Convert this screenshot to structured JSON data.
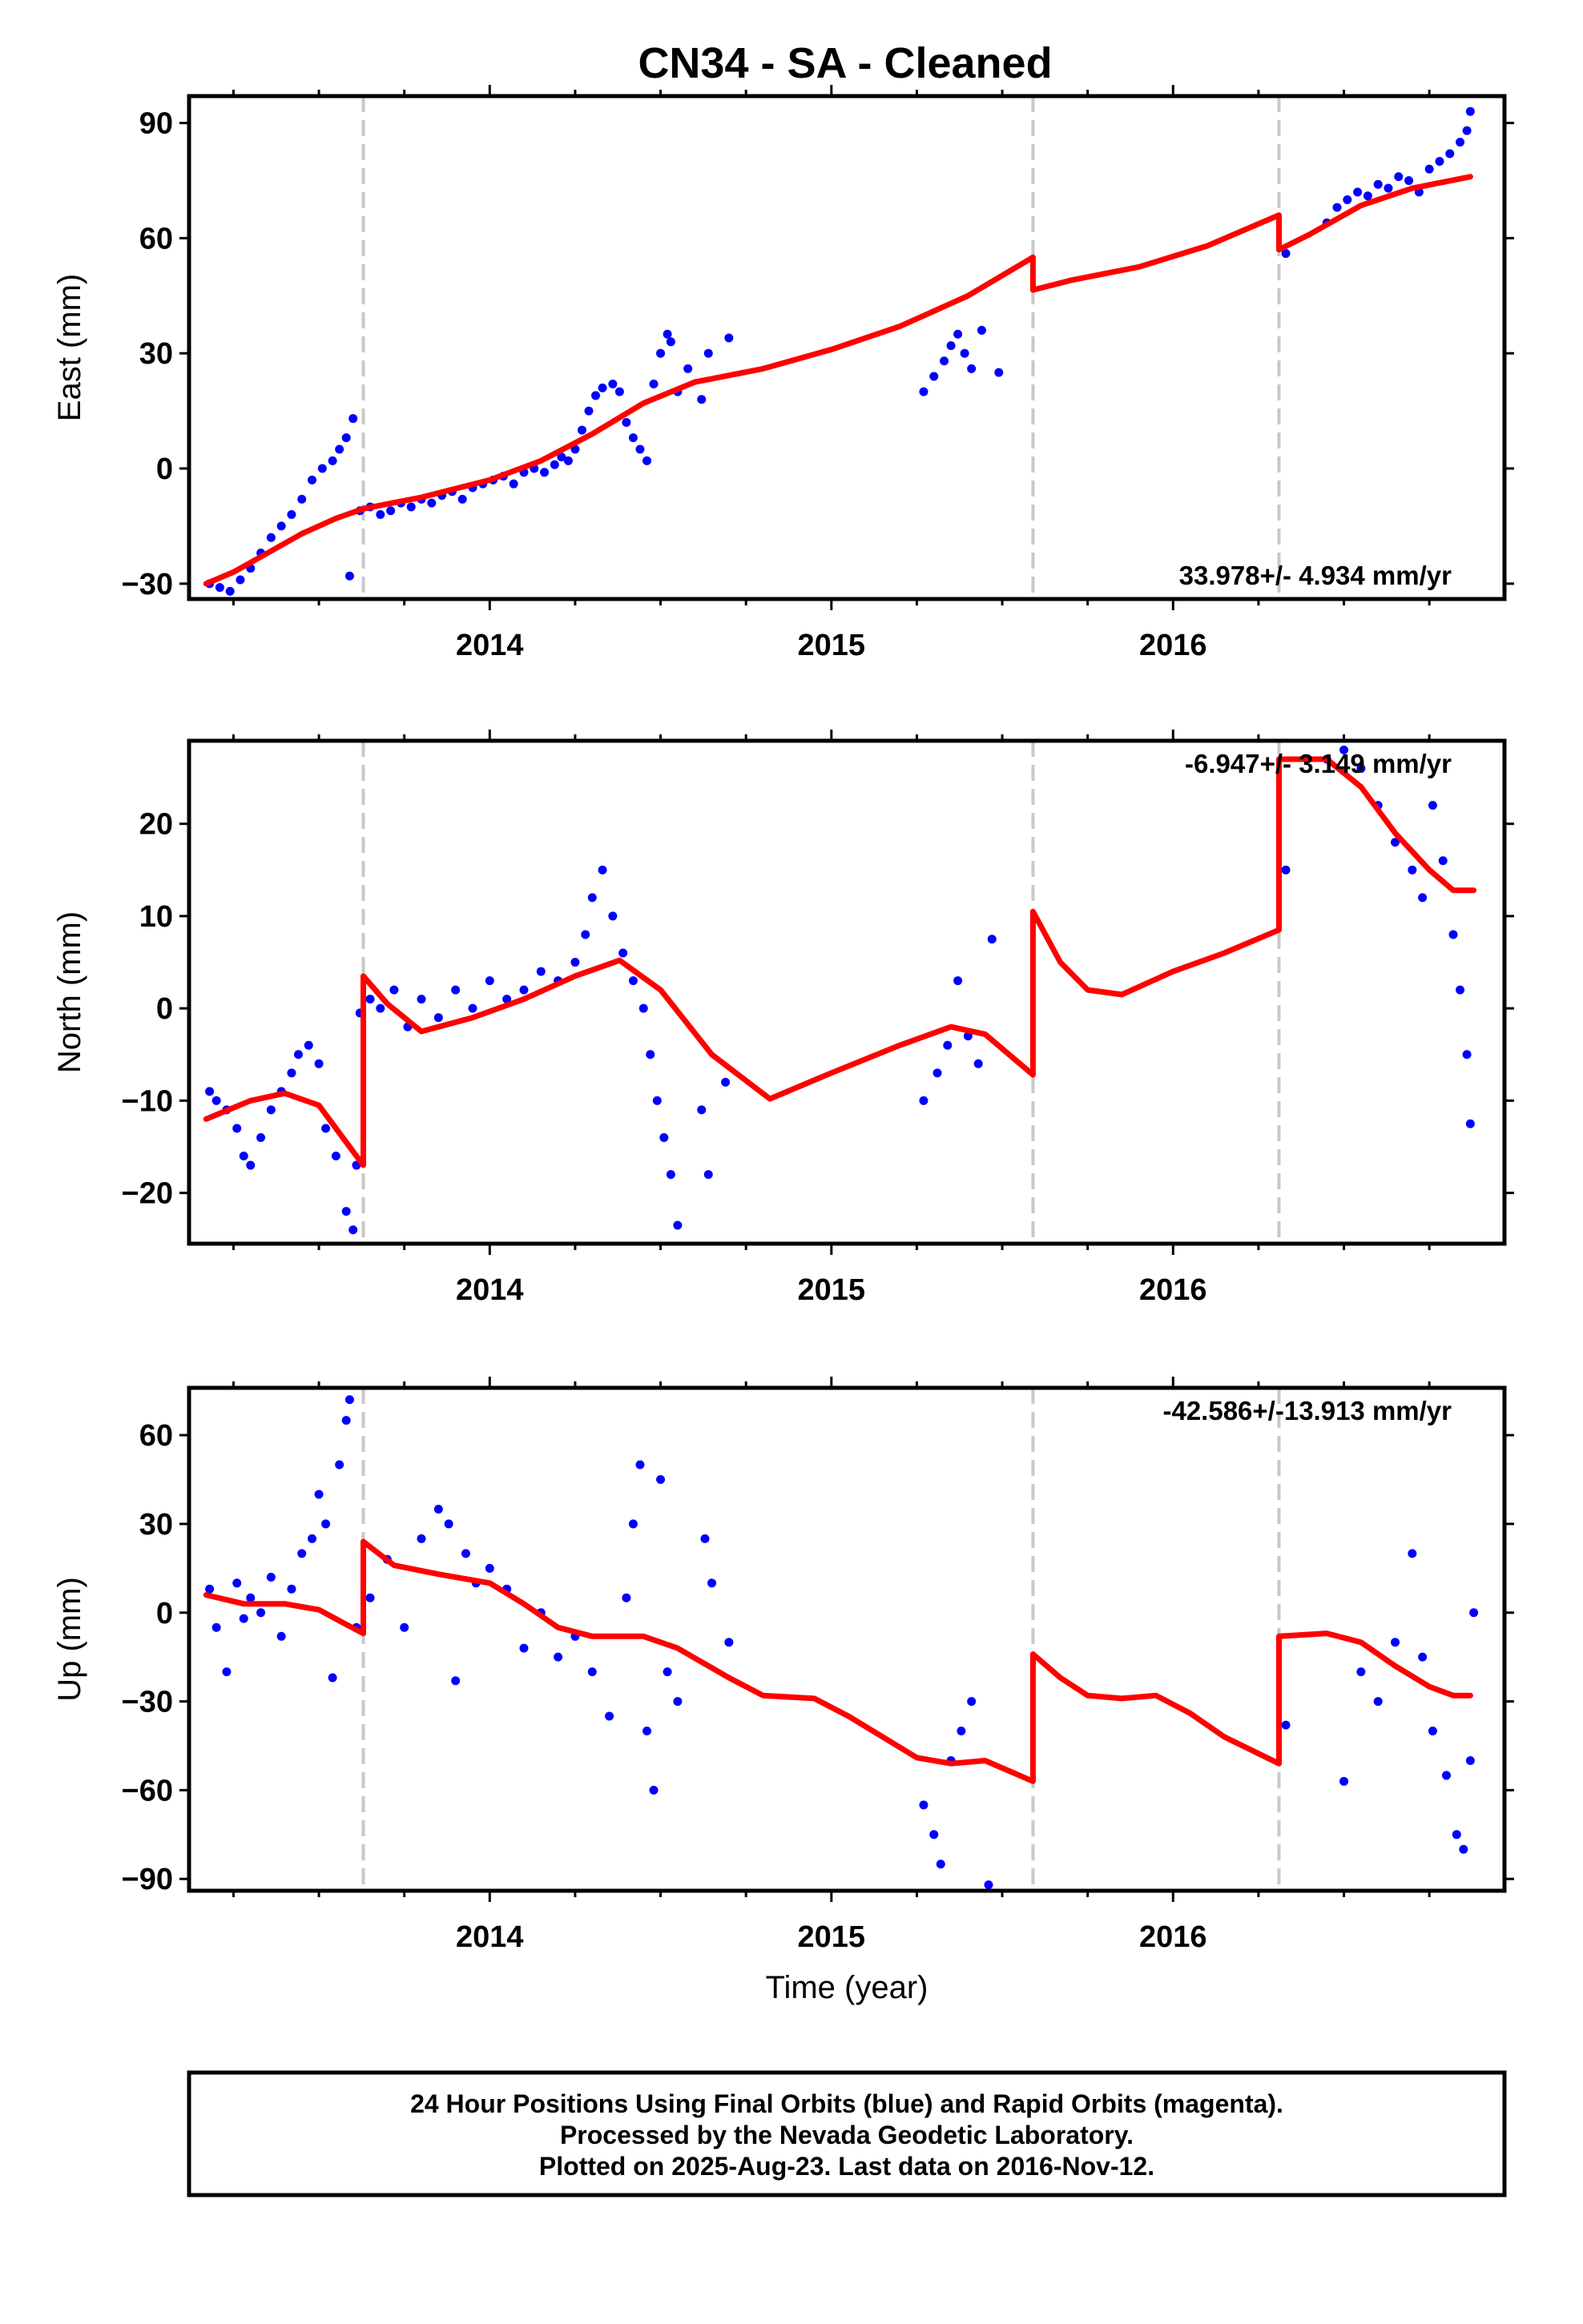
{
  "title": "CN34  - SA - Cleaned",
  "colors": {
    "final_orbits": "#0000ff",
    "model": "#ff0000",
    "breaks": "#c8c8c8",
    "frame": "#000000"
  },
  "footer": {
    "line1": "24 Hour Positions Using Final Orbits (blue) and Rapid Orbits (magenta).",
    "line2": "Processed by the Nevada Geodetic Laboratory.",
    "line3": "Plotted on 2025-Aug-23. Last data on 2016-Nov-12."
  },
  "chart_data": [
    {
      "type": "scatter",
      "ylabel": "East (mm)",
      "xlabel": "",
      "rate_label": "33.978+/- 4.934 mm/yr",
      "xlim": [
        2013.12,
        2016.97
      ],
      "ylim": [
        -34,
        97
      ],
      "xticks": [
        2014,
        2015,
        2016
      ],
      "xminor": [
        2013.25,
        2013.5,
        2013.75,
        2014.25,
        2014.5,
        2014.75,
        2015.25,
        2015.5,
        2015.75,
        2016.25,
        2016.5,
        2016.75
      ],
      "yticks": [
        -30,
        0,
        30,
        60,
        90
      ],
      "yticklabels": [
        "−30",
        "0",
        "30",
        "60",
        "90"
      ],
      "breaks": [
        2013.63,
        2015.59,
        2016.31
      ],
      "model_segments": [
        {
          "x": [
            2013.17,
            2013.25,
            2013.35,
            2013.45,
            2013.55,
            2013.63
          ],
          "y": [
            -30,
            -27,
            -22,
            -17,
            -13,
            -10.5
          ]
        },
        {
          "x": [
            2013.63,
            2013.8,
            2014.0,
            2014.15,
            2014.3,
            2014.45,
            2014.6,
            2014.8,
            2015.0,
            2015.2,
            2015.4,
            2015.59
          ],
          "y": [
            -10.5,
            -7.5,
            -3,
            2,
            9,
            17,
            22.5,
            26,
            31,
            37,
            45,
            55
          ]
        },
        {
          "x": [
            2015.59,
            2015.7,
            2015.9,
            2016.1,
            2016.31
          ],
          "y": [
            46.5,
            49,
            52.5,
            58,
            66
          ]
        },
        {
          "x": [
            2016.31,
            2016.4,
            2016.55,
            2016.7,
            2016.87
          ],
          "y": [
            57,
            61,
            68.5,
            73,
            76
          ]
        }
      ],
      "final_orbit_points": {
        "x": [
          2013.18,
          2013.21,
          2013.24,
          2013.27,
          2013.3,
          2013.33,
          2013.36,
          2013.39,
          2013.42,
          2013.45,
          2013.48,
          2013.51,
          2013.54,
          2013.56,
          2013.58,
          2013.6,
          2013.59,
          2013.62,
          2013.65,
          2013.68,
          2013.71,
          2013.74,
          2013.77,
          2013.8,
          2013.83,
          2013.86,
          2013.89,
          2013.92,
          2013.95,
          2013.98,
          2014.01,
          2014.04,
          2014.07,
          2014.1,
          2014.13,
          2014.16,
          2014.19,
          2014.21,
          2014.23,
          2014.25,
          2014.27,
          2014.29,
          2014.31,
          2014.33,
          2014.36,
          2014.38,
          2014.4,
          2014.42,
          2014.44,
          2014.46,
          2014.48,
          2014.5,
          2014.52,
          2014.53,
          2014.55,
          2014.58,
          2014.62,
          2014.64,
          2014.7,
          2015.27,
          2015.3,
          2015.33,
          2015.35,
          2015.37,
          2015.39,
          2015.41,
          2015.44,
          2015.49,
          2016.33,
          2016.45,
          2016.48,
          2016.51,
          2016.54,
          2016.57,
          2016.6,
          2016.63,
          2016.66,
          2016.69,
          2016.72,
          2016.75,
          2016.78,
          2016.81,
          2016.84,
          2016.86,
          2016.87
        ],
        "y": [
          -30,
          -31,
          -32,
          -29,
          -26,
          -22,
          -18,
          -15,
          -12,
          -8,
          -3,
          0,
          2,
          5,
          8,
          13,
          -28,
          -11,
          -10,
          -12,
          -11,
          -9,
          -10,
          -8,
          -9,
          -7,
          -6,
          -8,
          -5,
          -4,
          -3,
          -2,
          -4,
          -1,
          0,
          -1,
          1,
          3,
          2,
          5,
          10,
          15,
          19,
          21,
          22,
          20,
          12,
          8,
          5,
          2,
          22,
          30,
          35,
          33,
          20,
          26,
          18,
          30,
          34,
          20,
          24,
          28,
          32,
          35,
          30,
          26,
          36,
          25,
          56,
          64,
          68,
          70,
          72,
          71,
          74,
          73,
          76,
          75,
          72,
          78,
          80,
          82,
          85,
          88,
          93
        ]
      }
    },
    {
      "type": "scatter",
      "ylabel": "North (mm)",
      "xlabel": "",
      "rate_label": "-6.947+/- 3.149 mm/yr",
      "xlim": [
        2013.12,
        2016.97
      ],
      "ylim": [
        -25.5,
        29
      ],
      "xticks": [
        2014,
        2015,
        2016
      ],
      "xminor": [
        2013.25,
        2013.5,
        2013.75,
        2014.25,
        2014.5,
        2014.75,
        2015.25,
        2015.5,
        2015.75,
        2016.25,
        2016.5,
        2016.75
      ],
      "yticks": [
        -20,
        -10,
        0,
        10,
        20
      ],
      "yticklabels": [
        "−20",
        "−10",
        "0",
        "10",
        "20"
      ],
      "breaks": [
        2013.63,
        2015.59,
        2016.31
      ],
      "model_segments": [
        {
          "x": [
            2013.17,
            2013.3,
            2013.4,
            2013.5,
            2013.57,
            2013.63
          ],
          "y": [
            -12,
            -10,
            -9.2,
            -10.5,
            -14,
            -17
          ]
        },
        {
          "x": [
            2013.63,
            2013.7,
            2013.8,
            2013.95,
            2014.1,
            2014.25,
            2014.38,
            2014.5,
            2014.65,
            2014.82,
            2015.0,
            2015.2,
            2015.35,
            2015.45,
            2015.59
          ],
          "y": [
            3.5,
            0.5,
            -2.5,
            -1,
            1,
            3.5,
            5.2,
            2,
            -5,
            -9.8,
            -7,
            -4,
            -2,
            -2.8,
            -7.2
          ]
        },
        {
          "x": [
            2015.59,
            2015.67,
            2015.75,
            2015.85,
            2016.0,
            2016.15,
            2016.31
          ],
          "y": [
            10.5,
            5,
            2,
            1.5,
            4,
            6,
            8.5
          ]
        },
        {
          "x": [
            2016.31,
            2016.45,
            2016.55,
            2016.65,
            2016.75,
            2016.82,
            2016.88
          ],
          "y": [
            27,
            27,
            24,
            19,
            15,
            12.8,
            12.8
          ]
        }
      ],
      "final_orbit_points": {
        "x": [
          2013.18,
          2013.2,
          2013.23,
          2013.26,
          2013.28,
          2013.3,
          2013.33,
          2013.36,
          2013.39,
          2013.42,
          2013.44,
          2013.47,
          2013.5,
          2013.52,
          2013.55,
          2013.58,
          2013.6,
          2013.61,
          2013.62,
          2013.65,
          2013.68,
          2013.72,
          2013.76,
          2013.8,
          2013.85,
          2013.9,
          2013.95,
          2014.0,
          2014.05,
          2014.1,
          2014.15,
          2014.2,
          2014.25,
          2014.28,
          2014.3,
          2014.33,
          2014.36,
          2014.39,
          2014.42,
          2014.45,
          2014.47,
          2014.49,
          2014.51,
          2014.53,
          2014.55,
          2014.62,
          2014.64,
          2014.69,
          2015.27,
          2015.31,
          2015.34,
          2015.37,
          2015.4,
          2015.43,
          2015.47,
          2016.33,
          2016.45,
          2016.5,
          2016.55,
          2016.6,
          2016.65,
          2016.7,
          2016.73,
          2016.76,
          2016.79,
          2016.82,
          2016.84,
          2016.86,
          2016.87
        ],
        "y": [
          -9,
          -10,
          -11,
          -13,
          -16,
          -17,
          -14,
          -11,
          -9,
          -7,
          -5,
          -4,
          -6,
          -13,
          -16,
          -22,
          -24,
          -17,
          -0.5,
          1,
          0,
          2,
          -2,
          1,
          -1,
          2,
          0,
          3,
          1,
          2,
          4,
          3,
          5,
          8,
          12,
          15,
          10,
          6,
          3,
          0,
          -5,
          -10,
          -14,
          -18,
          -23.5,
          -11,
          -18,
          -8,
          -10,
          -7,
          -4,
          3,
          -3,
          -6,
          7.5,
          15,
          27,
          28,
          26,
          22,
          18,
          15,
          12,
          22,
          16,
          8,
          2,
          -5,
          -12.5
        ]
      }
    },
    {
      "type": "scatter",
      "ylabel": "Up (mm)",
      "xlabel": "Time (year)",
      "rate_label": "-42.586+/-13.913 mm/yr",
      "xlim": [
        2013.12,
        2016.97
      ],
      "ylim": [
        -94,
        76
      ],
      "xticks": [
        2014,
        2015,
        2016
      ],
      "xminor": [
        2013.25,
        2013.5,
        2013.75,
        2014.25,
        2014.5,
        2014.75,
        2015.25,
        2015.5,
        2015.75,
        2016.25,
        2016.5,
        2016.75
      ],
      "yticks": [
        -90,
        -60,
        -30,
        0,
        30,
        60
      ],
      "yticklabels": [
        "−90",
        "−60",
        "−30",
        "0",
        "30",
        "60"
      ],
      "breaks": [
        2013.63,
        2015.59,
        2016.31
      ],
      "model_segments": [
        {
          "x": [
            2013.17,
            2013.28,
            2013.4,
            2013.5,
            2013.58,
            2013.63
          ],
          "y": [
            6,
            3,
            3,
            1,
            -4,
            -7
          ]
        },
        {
          "x": [
            2013.63,
            2013.72,
            2013.85,
            2014.0,
            2014.1,
            2014.2,
            2014.3,
            2014.45,
            2014.55,
            2014.7,
            2014.8,
            2014.95,
            2015.05,
            2015.15,
            2015.25,
            2015.35,
            2015.45,
            2015.59
          ],
          "y": [
            24,
            16,
            13,
            10,
            3,
            -5,
            -8,
            -8,
            -12,
            -22,
            -28,
            -29,
            -35,
            -42,
            -49,
            -51,
            -50,
            -57
          ]
        },
        {
          "x": [
            2015.59,
            2015.67,
            2015.75,
            2015.85,
            2015.95,
            2016.05,
            2016.15,
            2016.31
          ],
          "y": [
            -14,
            -22,
            -28,
            -29,
            -28,
            -34,
            -42,
            -51
          ]
        },
        {
          "x": [
            2016.31,
            2016.45,
            2016.55,
            2016.65,
            2016.75,
            2016.82,
            2016.87
          ],
          "y": [
            -8,
            -7,
            -10,
            -18,
            -25,
            -28,
            -28
          ]
        }
      ],
      "final_orbit_points": {
        "x": [
          2013.18,
          2013.2,
          2013.23,
          2013.26,
          2013.28,
          2013.3,
          2013.33,
          2013.36,
          2013.39,
          2013.42,
          2013.45,
          2013.48,
          2013.5,
          2013.52,
          2013.54,
          2013.56,
          2013.58,
          2013.59,
          2013.61,
          2013.65,
          2013.7,
          2013.75,
          2013.8,
          2013.85,
          2013.88,
          2013.9,
          2013.93,
          2013.96,
          2014.0,
          2014.05,
          2014.1,
          2014.15,
          2014.2,
          2014.25,
          2014.3,
          2014.35,
          2014.4,
          2014.42,
          2014.44,
          2014.46,
          2014.48,
          2014.5,
          2014.52,
          2014.55,
          2014.63,
          2014.65,
          2014.7,
          2015.27,
          2015.3,
          2015.32,
          2015.35,
          2015.38,
          2015.41,
          2015.46,
          2016.33,
          2016.5,
          2016.55,
          2016.6,
          2016.65,
          2016.7,
          2016.73,
          2016.76,
          2016.8,
          2016.83,
          2016.85,
          2016.87,
          2016.88
        ],
        "y": [
          8,
          -5,
          -20,
          10,
          -2,
          5,
          0,
          12,
          -8,
          8,
          20,
          25,
          40,
          30,
          -22,
          50,
          65,
          72,
          -5,
          5,
          18,
          -5,
          25,
          35,
          30,
          -23,
          20,
          10,
          15,
          8,
          -12,
          0,
          -15,
          -8,
          -20,
          -35,
          5,
          30,
          50,
          -40,
          -60,
          45,
          -20,
          -30,
          25,
          10,
          -10,
          -65,
          -75,
          -85,
          -50,
          -40,
          -30,
          -92,
          -38,
          -57,
          -20,
          -30,
          -10,
          20,
          -15,
          -40,
          -55,
          -75,
          -80,
          -50,
          0
        ]
      }
    }
  ]
}
